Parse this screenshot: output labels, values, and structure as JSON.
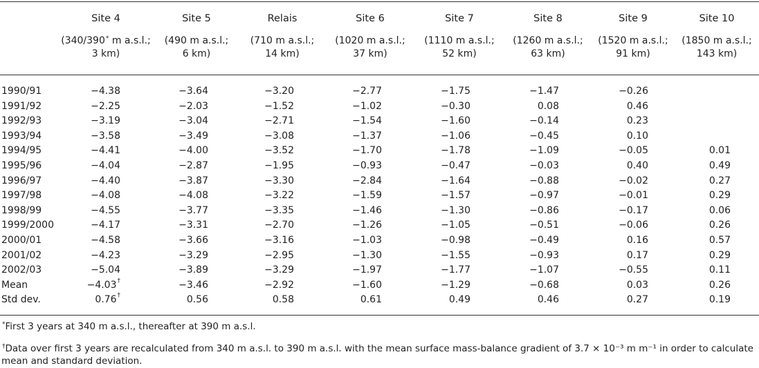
{
  "table": {
    "columns": [
      {
        "name": "Site 4",
        "sub1": "(340/390* m a.s.l.;",
        "sub2": "3 km)"
      },
      {
        "name": "Site 5",
        "sub1": "(490 m a.s.l.;",
        "sub2": "6 km)"
      },
      {
        "name": "Relais",
        "sub1": "(710 m a.s.l.;",
        "sub2": "14 km)"
      },
      {
        "name": "Site 6",
        "sub1": "(1020 m a.s.l.;",
        "sub2": "37 km)"
      },
      {
        "name": "Site 7",
        "sub1": "(1110 m a.s.l.;",
        "sub2": "52 km)"
      },
      {
        "name": "Site 8",
        "sub1": "(1260 m a.s.l.;",
        "sub2": "63 km)"
      },
      {
        "name": "Site 9",
        "sub1": "(1520 m a.s.l.;",
        "sub2": "91 km)"
      },
      {
        "name": "Site 10",
        "sub1": "(1850 m a.s.l.;",
        "sub2": "143 km)"
      }
    ],
    "rows": [
      {
        "label": "1990/91",
        "values": [
          "−4.38",
          "−3.64",
          "−3.20",
          "−2.77",
          "−1.75",
          "−1.47",
          "−0.26",
          ""
        ]
      },
      {
        "label": "1991/92",
        "values": [
          "−2.25",
          "−2.03",
          "−1.52",
          "−1.02",
          "−0.30",
          "0.08",
          "0.46",
          ""
        ]
      },
      {
        "label": "1992/93",
        "values": [
          "−3.19",
          "−3.04",
          "−2.71",
          "−1.54",
          "−1.60",
          "−0.14",
          "0.23",
          ""
        ]
      },
      {
        "label": "1993/94",
        "values": [
          "−3.58",
          "−3.49",
          "−3.08",
          "−1.37",
          "−1.06",
          "−0.45",
          "0.10",
          ""
        ]
      },
      {
        "label": "1994/95",
        "values": [
          "−4.41",
          "−4.00",
          "−3.52",
          "−1.70",
          "−1.78",
          "−1.09",
          "−0.05",
          "0.01"
        ]
      },
      {
        "label": "1995/96",
        "values": [
          "−4.04",
          "−2.87",
          "−1.95",
          "−0.93",
          "−0.47",
          "−0.03",
          "0.40",
          "0.49"
        ]
      },
      {
        "label": "1996/97",
        "values": [
          "−4.40",
          "−3.87",
          "−3.30",
          "−2.84",
          "−1.64",
          "−0.88",
          "−0.02",
          "0.27"
        ]
      },
      {
        "label": "1997/98",
        "values": [
          "−4.08",
          "−4.08",
          "−3.22",
          "−1.59",
          "−1.57",
          "−0.97",
          "−0.01",
          "0.29"
        ]
      },
      {
        "label": "1998/99",
        "values": [
          "−4.55",
          "−3.77",
          "−3.35",
          "−1.46",
          "−1.30",
          "−0.86",
          "−0.17",
          "0.06"
        ]
      },
      {
        "label": "1999/2000",
        "values": [
          "−4.17",
          "−3.31",
          "−2.70",
          "−1.26",
          "−1.05",
          "−0.51",
          "−0.06",
          "0.26"
        ]
      },
      {
        "label": "2000/01",
        "values": [
          "−4.58",
          "−3.66",
          "−3.16",
          "−1.03",
          "−0.98",
          "−0.49",
          "0.16",
          "0.57"
        ]
      },
      {
        "label": "2001/02",
        "values": [
          "−4.23",
          "−3.29",
          "−2.95",
          "−1.30",
          "−1.55",
          "−0.93",
          "0.17",
          "0.29"
        ]
      },
      {
        "label": "2002/03",
        "values": [
          "−5.04",
          "−3.89",
          "−3.29",
          "−1.97",
          "−1.77",
          "−1.07",
          "−0.55",
          "0.11"
        ]
      },
      {
        "label": "Mean",
        "values": [
          "−4.03†",
          "−3.46",
          "−2.92",
          "−1.60",
          "−1.29",
          "−0.68",
          "0.03",
          "0.26"
        ]
      },
      {
        "label": "Std dev.",
        "values": [
          "0.76†",
          "0.56",
          "0.58",
          "0.61",
          "0.49",
          "0.46",
          "0.27",
          "0.19"
        ]
      }
    ]
  },
  "footnotes": [
    "*First 3 years at 340 m a.s.l., thereafter at 390 m a.s.l.",
    "†Data over first 3 years are recalculated from 340 m a.s.l. to 390 m a.s.l. with the mean surface mass-balance gradient of 3.7 × 10⁻³ m m⁻¹ in order to calculate",
    "mean and standard deviation."
  ]
}
